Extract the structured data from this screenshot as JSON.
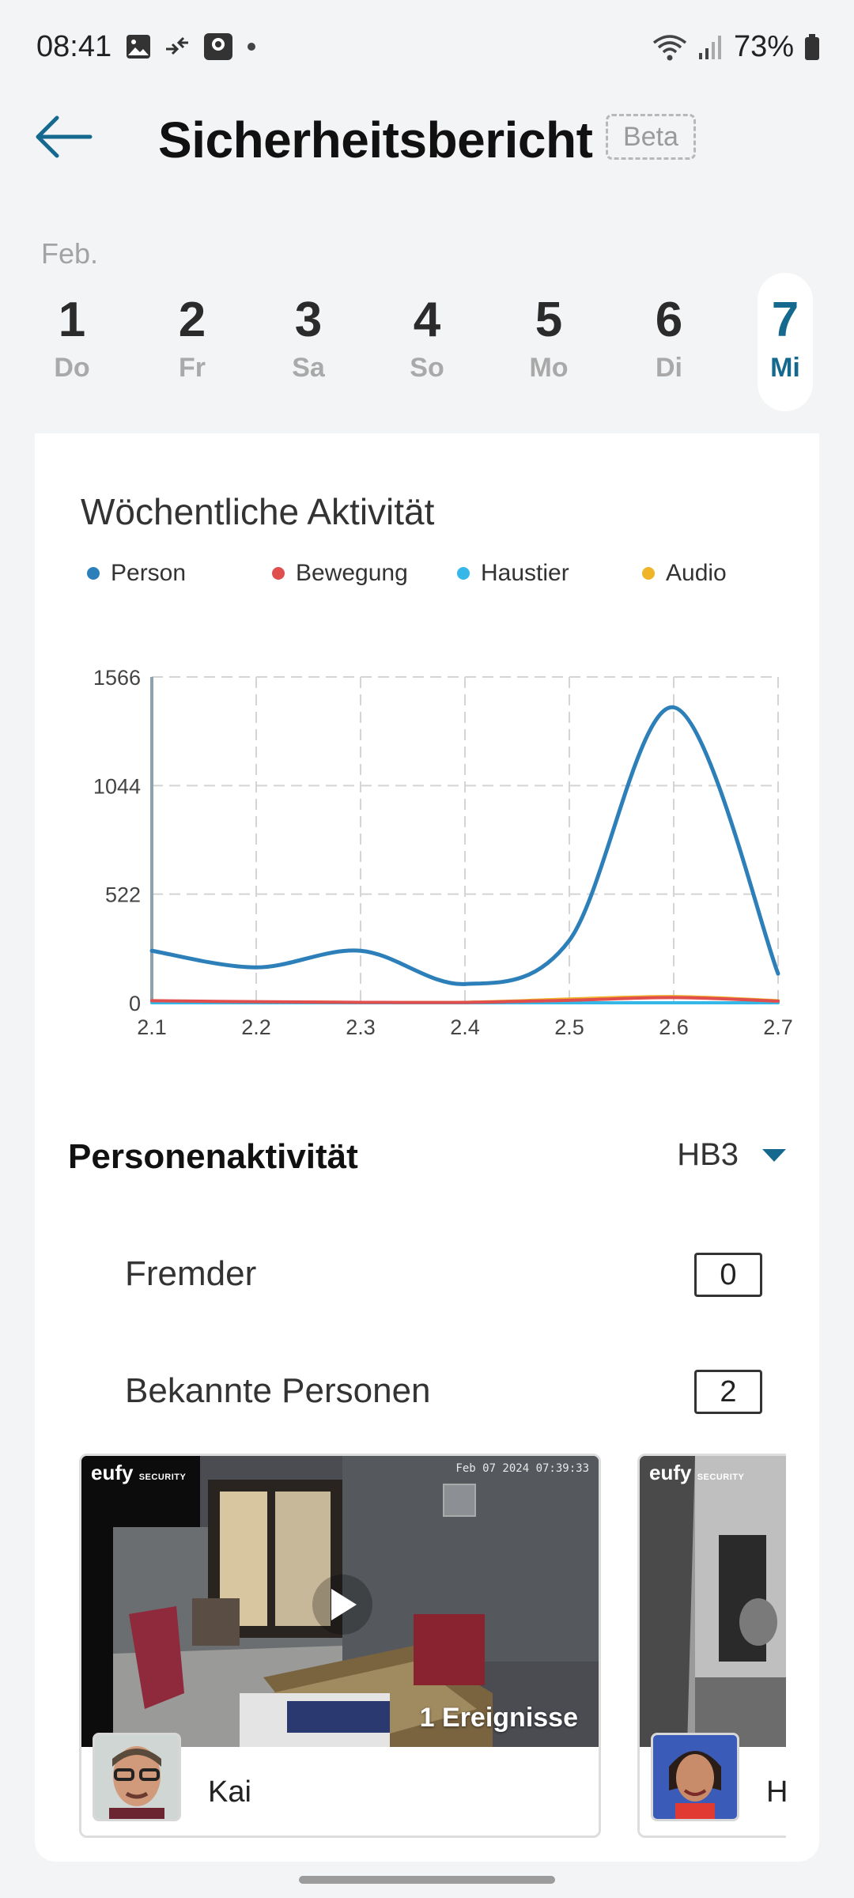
{
  "status_bar": {
    "time": "08:41",
    "battery": "73%"
  },
  "header": {
    "title": "Sicherheitsbericht",
    "badge": "Beta"
  },
  "calendar": {
    "month": "Feb.",
    "days": [
      {
        "num": "1",
        "wd": "Do"
      },
      {
        "num": "2",
        "wd": "Fr"
      },
      {
        "num": "3",
        "wd": "Sa"
      },
      {
        "num": "4",
        "wd": "So"
      },
      {
        "num": "5",
        "wd": "Mo"
      },
      {
        "num": "6",
        "wd": "Di"
      },
      {
        "num": "7",
        "wd": "Mi"
      }
    ],
    "selected_day": "7"
  },
  "chart": {
    "title": "Wöchentliche Aktivität",
    "legend": [
      "Person",
      "Bewegung",
      "Haustier",
      "Audio"
    ]
  },
  "chart_data": {
    "type": "line",
    "x": [
      "2.1",
      "2.2",
      "2.3",
      "2.4",
      "2.5",
      "2.6",
      "2.7"
    ],
    "series": [
      {
        "name": "Person",
        "color": "#2c7fb8",
        "values": [
          250,
          170,
          250,
          90,
          300,
          1420,
          140
        ]
      },
      {
        "name": "Bewegung",
        "color": "#e04e4e",
        "values": [
          10,
          5,
          2,
          2,
          12,
          25,
          8
        ]
      },
      {
        "name": "Haustier",
        "color": "#35b8e8",
        "values": [
          0,
          0,
          0,
          0,
          0,
          0,
          0
        ]
      },
      {
        "name": "Audio",
        "color": "#f0b429",
        "values": [
          8,
          4,
          2,
          2,
          18,
          30,
          10
        ]
      }
    ],
    "yticks": [
      "1566",
      "1044",
      "522",
      "0"
    ],
    "ylim": [
      0,
      1566
    ],
    "grid": true,
    "legend_position": "top"
  },
  "person_activity": {
    "title": "Personenaktivität",
    "device": "HB3",
    "stranger_label": "Fremder",
    "stranger_count": "0",
    "known_label": "Bekannte Personen",
    "known_count": "2"
  },
  "thumbnails": [
    {
      "brand": "eufy",
      "brand_sub": "SECURITY",
      "timestamp": "Feb 07 2024  07:39:33",
      "events": "1 Ereignisse",
      "name": "Kai"
    },
    {
      "brand": "eufy",
      "brand_sub": "SECURITY",
      "name": "H"
    }
  ],
  "colors": {
    "accent": "#16698e",
    "person": "#2c7fb8",
    "bewegung": "#e04e4e",
    "haustier": "#35b8e8",
    "audio": "#f0b429"
  }
}
